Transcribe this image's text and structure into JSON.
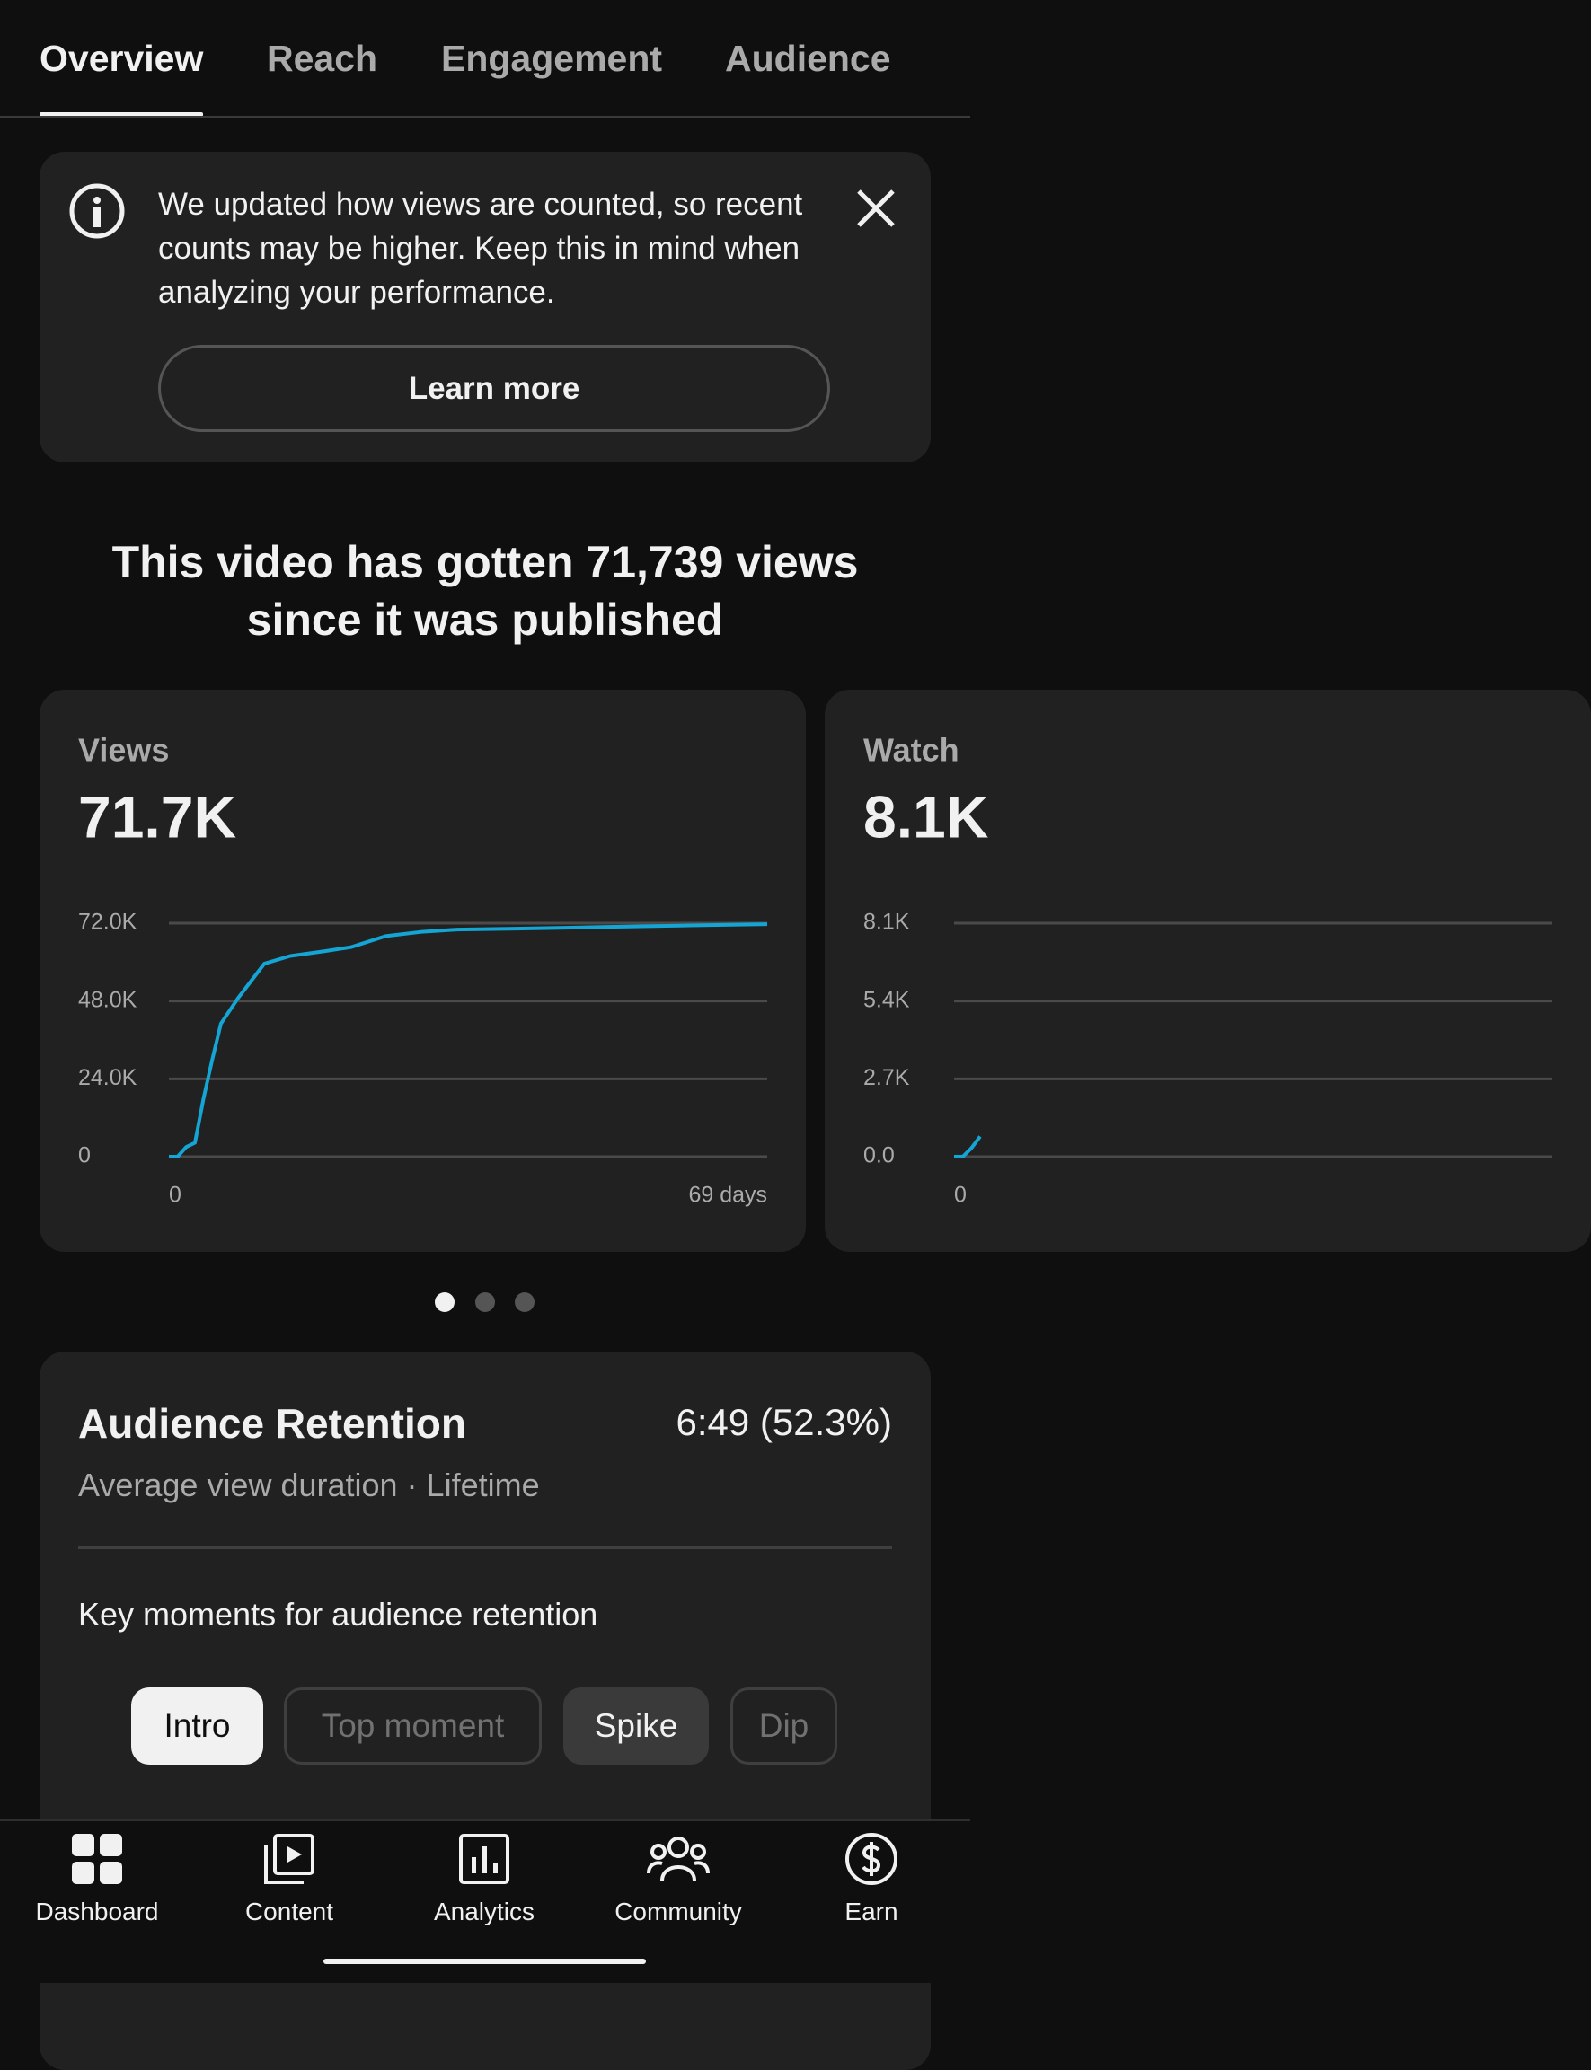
{
  "tabs": [
    "Overview",
    "Reach",
    "Engagement",
    "Audience"
  ],
  "banner": {
    "message": "We updated how views are counted, so recent counts may be higher. Keep this in mind when analyzing your performance.",
    "button": "Learn more"
  },
  "headline": "This video has gotten 71,739 views since it was published",
  "chart_data": [
    {
      "type": "line",
      "title": "Views",
      "subtitle": "71.7K",
      "color": "#14a5d4",
      "grid": true,
      "x": [
        0,
        1,
        2,
        3,
        4,
        5,
        6,
        8,
        11,
        14,
        18,
        21,
        25,
        29,
        33,
        40,
        50,
        60,
        69
      ],
      "values": [
        0,
        0,
        3000,
        4300,
        18000,
        30000,
        41000,
        49000,
        59500,
        61900,
        63400,
        64600,
        68000,
        69300,
        70000,
        70300,
        70800,
        71300,
        71700
      ],
      "xlim": [
        0,
        69
      ],
      "xticks": [
        0,
        {
          "value": 69,
          "label": "69 days"
        }
      ],
      "ylim": [
        0,
        72000
      ],
      "yticks": [
        0,
        {
          "value": 24000,
          "label": "24.0K"
        },
        {
          "value": 48000,
          "label": "48.0K"
        },
        {
          "value": 72000,
          "label": "72.0K"
        }
      ]
    },
    {
      "type": "line",
      "title": "Watch",
      "subtitle": "8.1K",
      "color": "#14a5d4",
      "grid": true,
      "x": [
        0,
        1,
        2,
        3
      ],
      "values": [
        0,
        0,
        300,
        700
      ],
      "xlim": [
        0,
        69
      ],
      "xticks": [
        0
      ],
      "ylim": [
        0,
        8100
      ],
      "yticks": [
        {
          "value": 0,
          "label": "0.0"
        },
        {
          "value": 2700,
          "label": "2.7K"
        },
        {
          "value": 5400,
          "label": "5.4K"
        },
        {
          "value": 8100,
          "label": "8.1K"
        }
      ]
    }
  ],
  "retention": {
    "title": "Audience Retention",
    "value": "6:49 (52.3%)",
    "subtitle": "Average view duration · Lifetime",
    "key_moments_title": "Key moments for audience retention",
    "chips": [
      "Intro",
      "Top moment",
      "Spike",
      "Dip"
    ]
  },
  "nav": [
    "Dashboard",
    "Content",
    "Analytics",
    "Community",
    "Earn"
  ]
}
